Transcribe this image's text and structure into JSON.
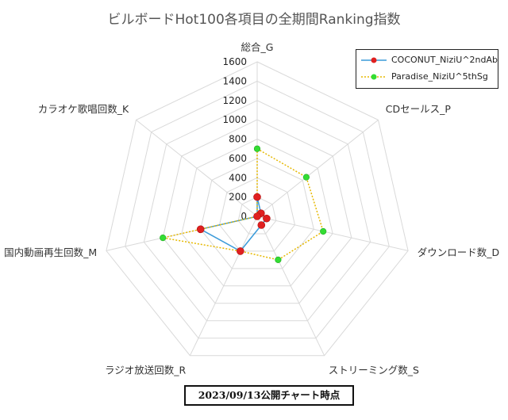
{
  "chart_data": {
    "type": "radar",
    "title": "ビルボードHot100各項目の全期間Ranking指数",
    "axes": [
      "総合_G",
      "CDセールス_P",
      "ダウンロード数_D",
      "ストリーミング数_S",
      "ラジオ放送回数_R",
      "国内動画再生回数_M",
      "カラオケ歌唱回数_K"
    ],
    "ticks": [
      0,
      200,
      400,
      600,
      800,
      1000,
      1200,
      1400,
      1600
    ],
    "rmax": 1600,
    "grid": true,
    "legend_position": "top-right",
    "series": [
      {
        "name": "COCONUT_NiziU^2ndAb",
        "color": "#3a9ad9",
        "marker_color": "#e02020",
        "line_style": "solid",
        "values": [
          200,
          50,
          100,
          100,
          400,
          600,
          0
        ]
      },
      {
        "name": "Paradise_NiziU^5thSg",
        "color": "#e6b800",
        "marker_color": "#33dd33",
        "line_style": "dotted",
        "values": [
          700,
          650,
          700,
          500,
          400,
          1000,
          0
        ]
      }
    ]
  },
  "footer": "2023/09/13公開チャート時点"
}
